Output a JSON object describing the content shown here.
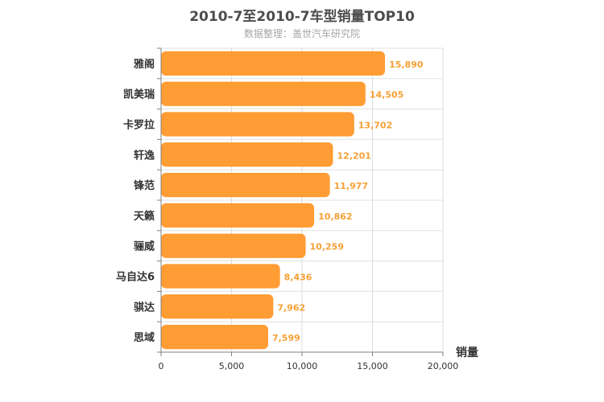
{
  "chart_data": {
    "type": "bar",
    "orientation": "horizontal",
    "title": "2010-7至2010-7车型销量TOP10",
    "subtitle": "数据整理：盖世汽车研究院",
    "categories": [
      "雅阁",
      "凯美瑞",
      "卡罗拉",
      "轩逸",
      "锋范",
      "天籁",
      "骊威",
      "马自达6",
      "骐达",
      "思域"
    ],
    "values": [
      15890,
      14505,
      13702,
      12201,
      11977,
      10862,
      10259,
      8436,
      7962,
      7599
    ],
    "value_labels": [
      "15,890",
      "14,505",
      "13,702",
      "12,201",
      "11,977",
      "10,862",
      "10,259",
      "8,436",
      "7,962",
      "7,599"
    ],
    "xlabel": "销量",
    "xlim": [
      0,
      20000
    ],
    "x_ticks": [
      0,
      5000,
      10000,
      15000,
      20000
    ],
    "x_tick_labels": [
      "0",
      "5,000",
      "10,000",
      "15,000",
      "20,000"
    ],
    "grid": true,
    "bar_color": "#ff9c33",
    "label_color": "#f7a035"
  }
}
